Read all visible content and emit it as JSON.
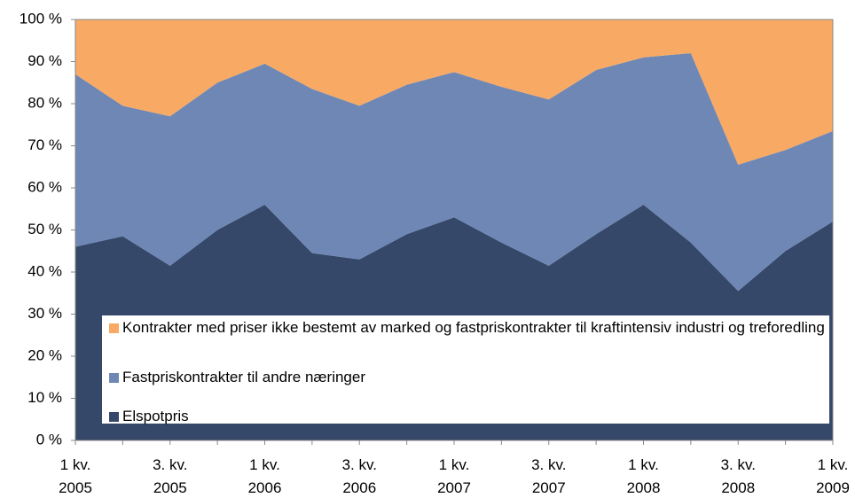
{
  "chart_data": {
    "type": "stacked_area",
    "categories": [
      "1 kv. 2005",
      null,
      "3. kv. 2005",
      null,
      "1 kv. 2006",
      null,
      "3. kv. 2006",
      null,
      "1 kv. 2007",
      null,
      "3. kv. 2007",
      null,
      "1 kv. 2008",
      null,
      "3. kv. 2008",
      null,
      "1 kv. 2009"
    ],
    "series": [
      {
        "name": "Elspotpris",
        "color": "#354869",
        "values": [
          46,
          48.5,
          41.5,
          50,
          56,
          44.5,
          43,
          49,
          53,
          47,
          41.5,
          49,
          56,
          47,
          35.5,
          45,
          52
        ]
      },
      {
        "name": "Fastpriskontrakter til andre næringer",
        "color": "#6e87b4",
        "values": [
          41,
          31,
          35.5,
          35,
          33.5,
          39,
          36.5,
          35.5,
          34.5,
          37,
          39.5,
          39,
          35,
          45,
          30,
          24,
          21.5
        ]
      },
      {
        "name": "Kontrakter med priser ikke bestemt av marked og fastpriskontrakter til kraftintensiv industri og treforedling",
        "color": "#f8a964",
        "values": [
          13,
          20.5,
          23,
          15,
          10.5,
          16.5,
          20.5,
          15.5,
          12.5,
          16,
          19,
          12,
          9,
          8,
          34.5,
          31,
          26.5
        ]
      }
    ],
    "ylim": [
      0,
      100
    ],
    "yticks": [
      {
        "value": 0,
        "label": "0 %"
      },
      {
        "value": 10,
        "label": "10 %"
      },
      {
        "value": 20,
        "label": "20 %"
      },
      {
        "value": 30,
        "label": "30 %"
      },
      {
        "value": 40,
        "label": "40 %"
      },
      {
        "value": 50,
        "label": "50 %"
      },
      {
        "value": 60,
        "label": "60 %"
      },
      {
        "value": 70,
        "label": "70 %"
      },
      {
        "value": 80,
        "label": "80 %"
      },
      {
        "value": 90,
        "label": "90 %"
      },
      {
        "value": 100,
        "label": "100 %"
      }
    ],
    "grid": false
  }
}
